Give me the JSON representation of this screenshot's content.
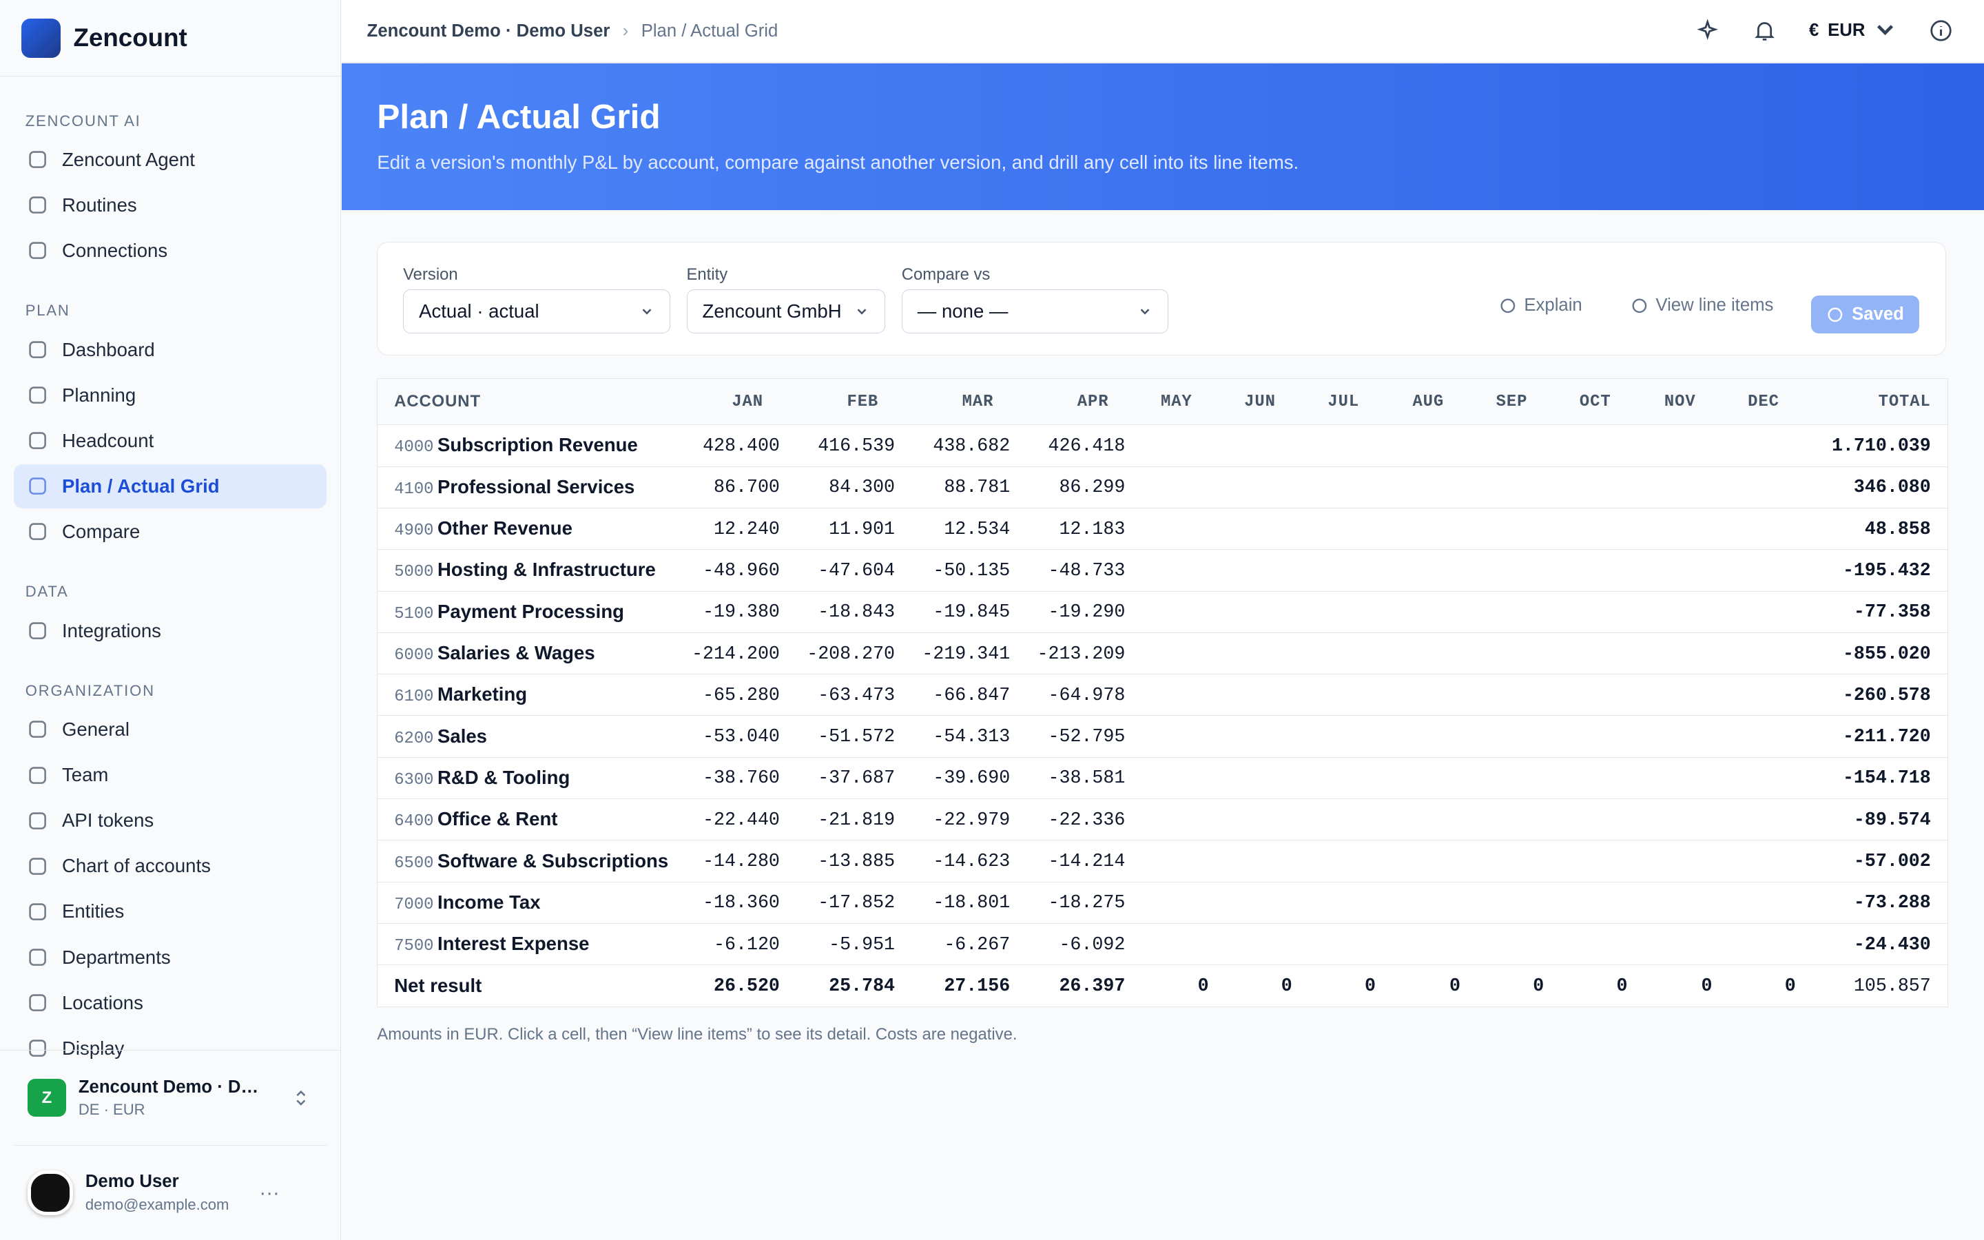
{
  "app": {
    "name": "Zencount"
  },
  "sidebar": {
    "sections": [
      {
        "title": "ZENCOUNT AI",
        "items": [
          "Zencount Agent",
          "Routines",
          "Connections"
        ]
      },
      {
        "title": "PLAN",
        "items": [
          "Dashboard",
          "Planning",
          "Headcount",
          "Plan / Actual Grid",
          "Compare"
        ]
      },
      {
        "title": "DATA",
        "items": [
          "Integrations"
        ]
      },
      {
        "title": "ORGANIZATION",
        "items": [
          "General",
          "Team",
          "API tokens",
          "Chart of accounts",
          "Entities",
          "Departments",
          "Locations",
          "Display"
        ]
      }
    ]
  },
  "workspace": {
    "avatar": "Z",
    "name": "Zencount Demo · Demo User",
    "detail": "DE · EUR"
  },
  "user": {
    "name": "Demo User",
    "email": "demo@example.com"
  },
  "topbar": {
    "breadcrumb": [
      "Zencount Demo · Demo User",
      "Plan / Actual Grid"
    ],
    "currency_symbol": "€",
    "currency": "EUR"
  },
  "header": {
    "title": "Plan / Actual Grid",
    "subtitle": "Edit a version's monthly P&L by account, compare against another version, and drill any cell into its line items."
  },
  "filters": [
    {
      "label": "Version",
      "value": "Actual · actual"
    },
    {
      "label": "Entity",
      "value": "Zencount GmbH"
    },
    {
      "label": "Compare vs",
      "value": "— none —"
    }
  ],
  "actions": [
    "Explain",
    "View line items",
    "Saved"
  ],
  "table": {
    "columns": [
      "ACCOUNT",
      "JAN",
      "FEB",
      "MAR",
      "APR",
      "MAY",
      "JUN",
      "JUL",
      "AUG",
      "SEP",
      "OCT",
      "NOV",
      "DEC",
      "TOTAL"
    ],
    "rows": [
      {
        "code": "4000",
        "name": "Subscription Revenue",
        "values": [
          "428.400",
          "416.539",
          "438.682",
          "426.418"
        ],
        "total": "1.710.039"
      },
      {
        "code": "4100",
        "name": "Professional Services",
        "values": [
          "86.700",
          "84.300",
          "88.781",
          "86.299"
        ],
        "total": "346.080"
      },
      {
        "code": "4900",
        "name": "Other Revenue",
        "values": [
          "12.240",
          "11.901",
          "12.534",
          "12.183"
        ],
        "total": "48.858"
      },
      {
        "code": "5000",
        "name": "Hosting & Infrastructure",
        "values": [
          "-48.960",
          "-47.604",
          "-50.135",
          "-48.733"
        ],
        "total": "-195.432"
      },
      {
        "code": "5100",
        "name": "Payment Processing",
        "values": [
          "-19.380",
          "-18.843",
          "-19.845",
          "-19.290"
        ],
        "total": "-77.358"
      },
      {
        "code": "6000",
        "name": "Salaries & Wages",
        "values": [
          "-214.200",
          "-208.270",
          "-219.341",
          "-213.209"
        ],
        "total": "-855.020"
      },
      {
        "code": "6100",
        "name": "Marketing",
        "values": [
          "-65.280",
          "-63.473",
          "-66.847",
          "-64.978"
        ],
        "total": "-260.578"
      },
      {
        "code": "6200",
        "name": "Sales",
        "values": [
          "-53.040",
          "-51.572",
          "-54.313",
          "-52.795"
        ],
        "total": "-211.720"
      },
      {
        "code": "6300",
        "name": "R&D & Tooling",
        "values": [
          "-38.760",
          "-37.687",
          "-39.690",
          "-38.581"
        ],
        "total": "-154.718"
      },
      {
        "code": "6400",
        "name": "Office & Rent",
        "values": [
          "-22.440",
          "-21.819",
          "-22.979",
          "-22.336"
        ],
        "total": "-89.574"
      },
      {
        "code": "6500",
        "name": "Software & Subscriptions",
        "values": [
          "-14.280",
          "-13.885",
          "-14.623",
          "-14.214"
        ],
        "total": "-57.002"
      },
      {
        "code": "7000",
        "name": "Income Tax",
        "values": [
          "-18.360",
          "-17.852",
          "-18.801",
          "-18.275"
        ],
        "total": "-73.288"
      },
      {
        "code": "7500",
        "name": "Interest Expense",
        "values": [
          "-6.120",
          "-5.951",
          "-6.267",
          "-6.092"
        ],
        "total": "-24.430"
      }
    ],
    "net": {
      "label": "Net result",
      "values": [
        "26.520",
        "25.784",
        "27.156",
        "26.397",
        "0",
        "0",
        "0",
        "0",
        "0",
        "0",
        "0",
        "0"
      ],
      "total": "105.857"
    }
  },
  "footnote": "Amounts in EUR. Click a cell, then “View line items” to see its detail. Costs are negative."
}
